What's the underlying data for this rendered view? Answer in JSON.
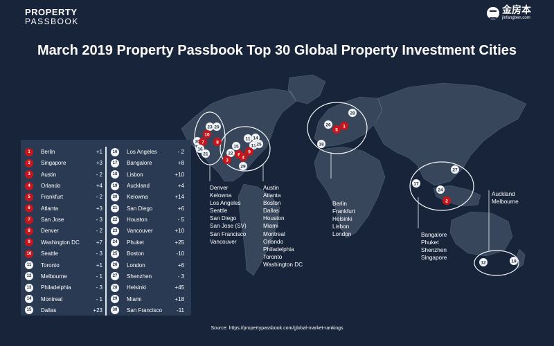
{
  "brand": {
    "left_line1": "PROPERTY",
    "left_line2": "PASSBOOK",
    "right_name": "金房本",
    "right_url": "jinfangben.com"
  },
  "title": "March 2019 Property Passbook Top 30 Global Property Investment Cities",
  "source": "Source: https://propertypassbook.com/global-market-rankings",
  "colors": {
    "background": "#17243a",
    "panel": "#2a3a52",
    "marker_red": "#c4161c",
    "marker_white": "#f4f6f8",
    "land": "#8190a3"
  },
  "rankings": [
    {
      "rank": "1",
      "city": "Berlin",
      "change": "+1",
      "highlight": true
    },
    {
      "rank": "2",
      "city": "Singapore",
      "change": "+3",
      "highlight": true
    },
    {
      "rank": "3",
      "city": "Austin",
      "change": "- 2",
      "highlight": true
    },
    {
      "rank": "4",
      "city": "Orlando",
      "change": "+4",
      "highlight": true
    },
    {
      "rank": "5",
      "city": "Frankfurt",
      "change": "- 2",
      "highlight": true
    },
    {
      "rank": "6",
      "city": "Atlanta",
      "change": "+3",
      "highlight": true
    },
    {
      "rank": "7",
      "city": "San Jose",
      "change": "- 3",
      "highlight": true
    },
    {
      "rank": "8",
      "city": "Denver",
      "change": "- 2",
      "highlight": true
    },
    {
      "rank": "9",
      "city": "Washington DC",
      "change": "+7",
      "highlight": true
    },
    {
      "rank": "10",
      "city": "Seattle",
      "change": "- 3",
      "highlight": true
    },
    {
      "rank": "11",
      "city": "Toronto",
      "change": "+1",
      "highlight": false
    },
    {
      "rank": "12",
      "city": "Melbourne",
      "change": "- 1",
      "highlight": false
    },
    {
      "rank": "13",
      "city": "Philadelphia",
      "change": "- 3",
      "highlight": false
    },
    {
      "rank": "14",
      "city": "Montreal",
      "change": "- 1",
      "highlight": false
    },
    {
      "rank": "15",
      "city": "Dallas",
      "change": "+23",
      "highlight": false
    },
    {
      "rank": "16",
      "city": "Los Angeles",
      "change": "- 2",
      "highlight": false
    },
    {
      "rank": "17",
      "city": "Bangalore",
      "change": "+8",
      "highlight": false
    },
    {
      "rank": "18",
      "city": "Lisbon",
      "change": "+10",
      "highlight": false
    },
    {
      "rank": "19",
      "city": "Auckland",
      "change": "+4",
      "highlight": false
    },
    {
      "rank": "20",
      "city": "Kelowna",
      "change": "+14",
      "highlight": false
    },
    {
      "rank": "21",
      "city": "San Diego",
      "change": "+6",
      "highlight": false
    },
    {
      "rank": "22",
      "city": "Houston",
      "change": "- 5",
      "highlight": false
    },
    {
      "rank": "23",
      "city": "Vancouver",
      "change": "+10",
      "highlight": false
    },
    {
      "rank": "24",
      "city": "Phuket",
      "change": "+25",
      "highlight": false
    },
    {
      "rank": "25",
      "city": "Boston",
      "change": "-10",
      "highlight": false
    },
    {
      "rank": "26",
      "city": "London",
      "change": "+6",
      "highlight": false
    },
    {
      "rank": "27",
      "city": "Shenzhen",
      "change": "- 3",
      "highlight": false
    },
    {
      "rank": "28",
      "city": "Helsinki",
      "change": "+45",
      "highlight": false
    },
    {
      "rank": "29",
      "city": "Miami",
      "change": "+18",
      "highlight": false
    },
    {
      "rank": "30",
      "city": "San Francisco",
      "change": "-11",
      "highlight": false
    }
  ],
  "clusters": [
    {
      "id": "us-west",
      "cities": [
        "Denver",
        "Kelowna",
        "Los Angeles",
        "Seattle",
        "San Diego",
        "San Jose (SV)",
        "San Francisco",
        "Vancouver"
      ]
    },
    {
      "id": "us-east",
      "cities": [
        "Austin",
        "Atlanta",
        "Boston",
        "Dallas",
        "Houston",
        "Miami",
        "Montreal",
        "Orlando",
        "Philadelphia",
        "Toronto",
        "Washington DC"
      ]
    },
    {
      "id": "europe",
      "cities": [
        "Berlin",
        "Frankfurt",
        "Helsinki",
        "Lisbon",
        "London"
      ]
    },
    {
      "id": "asia",
      "cities": [
        "Bangalore",
        "Phuket",
        "Shenzhen",
        "Singapore"
      ]
    },
    {
      "id": "oceania",
      "cities": [
        "Auckland",
        "Melbourne"
      ]
    }
  ],
  "map_markers": [
    {
      "label": "23",
      "red": false
    },
    {
      "label": "20",
      "red": false
    },
    {
      "label": "10",
      "red": true
    },
    {
      "label": "8",
      "red": true
    },
    {
      "label": "30",
      "red": false
    },
    {
      "label": "7",
      "red": true
    },
    {
      "label": "16",
      "red": false
    },
    {
      "label": "21",
      "red": false
    },
    {
      "label": "11",
      "red": false
    },
    {
      "label": "14",
      "red": false
    },
    {
      "label": "13",
      "red": false
    },
    {
      "label": "25",
      "red": false
    },
    {
      "label": "15",
      "red": false
    },
    {
      "label": "22",
      "red": false
    },
    {
      "label": "9",
      "red": true
    },
    {
      "label": "6",
      "red": true
    },
    {
      "label": "3",
      "red": true
    },
    {
      "label": "4",
      "red": true
    },
    {
      "label": "29",
      "red": false
    },
    {
      "label": "28",
      "red": false
    },
    {
      "label": "26",
      "red": false
    },
    {
      "label": "5",
      "red": true
    },
    {
      "label": "1",
      "red": true
    },
    {
      "label": "18",
      "red": false
    },
    {
      "label": "27",
      "red": false
    },
    {
      "label": "17",
      "red": false
    },
    {
      "label": "24",
      "red": false
    },
    {
      "label": "2",
      "red": true
    },
    {
      "label": "12",
      "red": false
    },
    {
      "label": "19",
      "red": false
    }
  ]
}
